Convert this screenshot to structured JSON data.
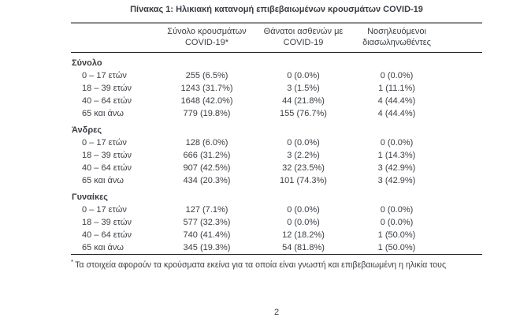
{
  "page": {
    "title": "Πίνακας 1: Ηλικιακή κατανομή επιβεβαιωμένων κρουσμάτων COVID-19",
    "footnote_marker": "*",
    "footnote": "Τα στοιχεία αφορούν τα κρούσματα εκείνα για τα οποία είναι γνωστή και επιβεβαιωμένη η ηλικία τους",
    "number": "2"
  },
  "table": {
    "header": {
      "cases": {
        "line1": "Σύνολο κρουσμάτων",
        "line2": "COVID-19*"
      },
      "deaths": {
        "line1": "Θάνατοι ασθενών με",
        "line2": "COVID-19"
      },
      "intubated": {
        "line1": "Νοσηλευόμενοι",
        "line2": "διασωληνωθέντες"
      }
    },
    "sections": [
      {
        "label": "Σύνολο",
        "rows": [
          {
            "label": "0 – 17 ετών",
            "cases": "255 (6.5%)",
            "deaths": "0 (0.0%)",
            "intubated": "0 (0.0%)"
          },
          {
            "label": "18 – 39 ετών",
            "cases": "1243 (31.7%)",
            "deaths": "3 (1.5%)",
            "intubated": "1 (11.1%)"
          },
          {
            "label": "40 – 64 ετών",
            "cases": "1648 (42.0%)",
            "deaths": "44 (21.8%)",
            "intubated": "4 (44.4%)"
          },
          {
            "label": "65 και άνω",
            "cases": "779 (19.8%)",
            "deaths": "155 (76.7%)",
            "intubated": "4 (44.4%)"
          }
        ]
      },
      {
        "label": "Άνδρες",
        "rows": [
          {
            "label": "0 – 17 ετών",
            "cases": "128 (6.0%)",
            "deaths": "0 (0.0%)",
            "intubated": "0 (0.0%)"
          },
          {
            "label": "18 – 39 ετών",
            "cases": "666 (31.2%)",
            "deaths": "3 (2.2%)",
            "intubated": "1 (14.3%)"
          },
          {
            "label": "40 – 64 ετών",
            "cases": "907 (42.5%)",
            "deaths": "32 (23.5%)",
            "intubated": "3 (42.9%)"
          },
          {
            "label": "65 και άνω",
            "cases": "434 (20.3%)",
            "deaths": "101 (74.3%)",
            "intubated": "3 (42.9%)"
          }
        ]
      },
      {
        "label": "Γυναίκες",
        "rows": [
          {
            "label": "0 – 17 ετών",
            "cases": "127 (7.1%)",
            "deaths": "0 (0.0%)",
            "intubated": "0 (0.0%)"
          },
          {
            "label": "18 – 39 ετών",
            "cases": "577 (32.3%)",
            "deaths": "0 (0.0%)",
            "intubated": "0 (0.0%)"
          },
          {
            "label": "40 – 64 ετών",
            "cases": "740 (41.4%)",
            "deaths": "12 (18.2%)",
            "intubated": "1 (50.0%)"
          },
          {
            "label": "65 και άνω",
            "cases": "345 (19.3%)",
            "deaths": "54 (81.8%)",
            "intubated": "1 (50.0%)"
          }
        ]
      }
    ]
  },
  "colors": {
    "text": "#3a3e44",
    "rule_gray": "#8c8c8c",
    "rule_black": "#262626"
  }
}
